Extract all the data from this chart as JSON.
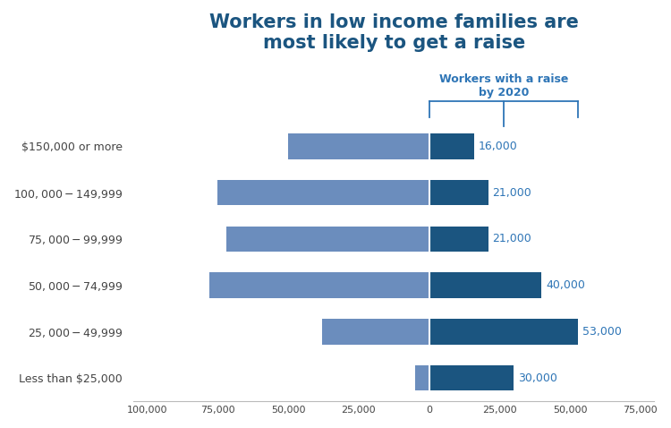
{
  "title_line1": "Workers in low income families are",
  "title_line2": "most likely to get a raise",
  "annotation_label": "Workers with a raise\nby 2020",
  "categories": [
    "$150,000 or more",
    "$100,000 - $149,999",
    "$75,000 - $99,999",
    "$50,000 - $74,999",
    "$25,000 - $49,999",
    "Less than $25,000"
  ],
  "left_values": [
    -50000,
    -75000,
    -72000,
    -78000,
    -38000,
    -5000
  ],
  "right_values": [
    16000,
    21000,
    21000,
    40000,
    53000,
    30000
  ],
  "right_labels": [
    "16,000",
    "21,000",
    "21,000",
    "40,000",
    "53,000",
    "30,000"
  ],
  "left_color": "#6B8DBD",
  "right_color": "#1B5580",
  "title_color": "#1B5580",
  "annotation_color": "#2E75B6",
  "label_color": "#2E75B6",
  "axis_color": "#444444",
  "bg_color": "#FFFFFF",
  "xlim": [
    -105000,
    80000
  ],
  "xticks": [
    -100000,
    -75000,
    -50000,
    -25000,
    0,
    25000,
    50000,
    75000
  ],
  "xtick_labels": [
    "100,000",
    "75,000",
    "50,000",
    "25,000",
    "0",
    "25,000",
    "50,000",
    "75,000"
  ],
  "bar_height": 0.55
}
